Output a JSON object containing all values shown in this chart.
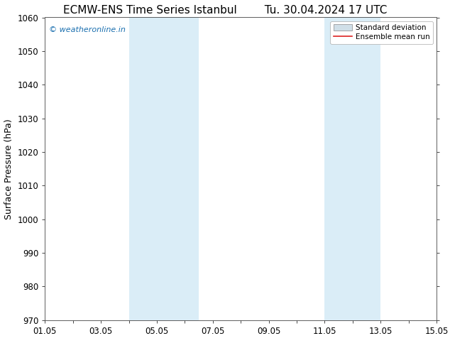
{
  "title": "ECMW-ENS Time Series Istanbul",
  "title2": "Tu. 30.04.2024 17 UTC",
  "ylabel": "Surface Pressure (hPa)",
  "ylim": [
    970,
    1060
  ],
  "yticks": [
    970,
    980,
    990,
    1000,
    1010,
    1020,
    1030,
    1040,
    1050,
    1060
  ],
  "xlim": [
    0,
    14
  ],
  "xtick_positions": [
    0,
    2,
    4,
    6,
    8,
    10,
    12,
    14
  ],
  "xtick_labels": [
    "01.05",
    "03.05",
    "05.05",
    "07.05",
    "09.05",
    "11.05",
    "13.05",
    "15.05"
  ],
  "shaded_bands": [
    {
      "xmin": 3.0,
      "xmax": 5.5
    },
    {
      "xmin": 10.0,
      "xmax": 12.0
    }
  ],
  "band_color": "#daedf7",
  "watermark": "© weatheronline.in",
  "watermark_color": "#1a6faf",
  "legend_entries": [
    "Standard deviation",
    "Ensemble mean run"
  ],
  "legend_std_color": "#d0dfe8",
  "legend_mean_color": "#dd2222",
  "background_color": "#ffffff",
  "plot_bg_color": "#ffffff",
  "title_fontsize": 11,
  "axis_label_fontsize": 9,
  "tick_fontsize": 8.5,
  "watermark_fontsize": 8
}
